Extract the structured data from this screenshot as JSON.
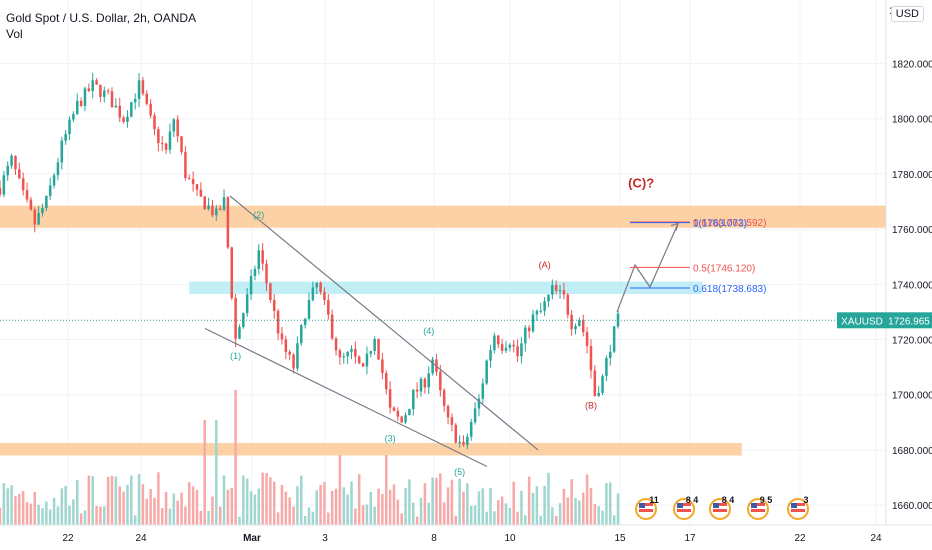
{
  "legend": {
    "title": "Gold Spot / U.S. Dollar, 2h, OANDA",
    "volume_label": "Vol"
  },
  "currency_button": "USD",
  "price_scale": {
    "top_clipped_label": "18"
  },
  "colors": {
    "up": "#26a69a",
    "down": "#ef5350",
    "vol_up": "#9fd6cf",
    "vol_down": "#f7a9a7",
    "zone_orange": "#fbc995",
    "zone_cyan": "#b2ebf2",
    "price_line": "#26a69a",
    "wave_teal": "#26a69a",
    "wave_red": "#c62828",
    "fib_blue": "#2962ff",
    "fib_red": "#ef5350",
    "trend_line": "#787b86",
    "projection": "#787b86"
  },
  "chart_data": {
    "type": "candlestick",
    "symbol": "XAUUSD",
    "timeframe": "2h",
    "ylim": [
      1651,
      1843
    ],
    "x_ticks": [
      "22",
      "24",
      "Mar",
      "3",
      "8",
      "10",
      "15",
      "17",
      "22",
      "24"
    ],
    "y_ticks": [
      "1660.000",
      "1680.000",
      "1700.000",
      "1720.000",
      "1740.000",
      "1760.000",
      "1780.000",
      "1800.000",
      "1820.000"
    ],
    "last_price": {
      "label": "XAUUSD",
      "value": "1726.965",
      "numeric": 1726.965
    },
    "price_path": [
      {
        "t": 0,
        "p": 1775
      },
      {
        "t": 3,
        "p": 1785
      },
      {
        "t": 6,
        "p": 1772
      },
      {
        "t": 9,
        "p": 1762
      },
      {
        "t": 12,
        "p": 1770
      },
      {
        "t": 16,
        "p": 1790
      },
      {
        "t": 20,
        "p": 1805
      },
      {
        "t": 24,
        "p": 1812
      },
      {
        "t": 28,
        "p": 1808
      },
      {
        "t": 32,
        "p": 1800
      },
      {
        "t": 36,
        "p": 1812
      },
      {
        "t": 40,
        "p": 1795
      },
      {
        "t": 43,
        "p": 1788
      },
      {
        "t": 45,
        "p": 1800
      },
      {
        "t": 48,
        "p": 1780
      },
      {
        "t": 51,
        "p": 1772
      },
      {
        "t": 54,
        "p": 1768
      },
      {
        "t": 56,
        "p": 1765
      },
      {
        "t": 58,
        "p": 1770
      },
      {
        "t": 61,
        "p": 1720
      },
      {
        "t": 64,
        "p": 1735
      },
      {
        "t": 67,
        "p": 1752
      },
      {
        "t": 70,
        "p": 1735
      },
      {
        "t": 73,
        "p": 1718
      },
      {
        "t": 76,
        "p": 1710
      },
      {
        "t": 79,
        "p": 1730
      },
      {
        "t": 82,
        "p": 1740
      },
      {
        "t": 85,
        "p": 1728
      },
      {
        "t": 88,
        "p": 1712
      },
      {
        "t": 91,
        "p": 1715
      },
      {
        "t": 94,
        "p": 1708
      },
      {
        "t": 97,
        "p": 1722
      },
      {
        "t": 99,
        "p": 1708
      },
      {
        "t": 101,
        "p": 1694
      },
      {
        "t": 104,
        "p": 1690
      },
      {
        "t": 107,
        "p": 1700
      },
      {
        "t": 110,
        "p": 1705
      },
      {
        "t": 112,
        "p": 1713
      },
      {
        "t": 114,
        "p": 1700
      },
      {
        "t": 116,
        "p": 1690
      },
      {
        "t": 118,
        "p": 1685
      },
      {
        "t": 120,
        "p": 1680
      },
      {
        "t": 122,
        "p": 1690
      },
      {
        "t": 124,
        "p": 1698
      },
      {
        "t": 126,
        "p": 1712
      },
      {
        "t": 128,
        "p": 1722
      },
      {
        "t": 130,
        "p": 1718
      },
      {
        "t": 132,
        "p": 1720
      },
      {
        "t": 134,
        "p": 1714
      },
      {
        "t": 136,
        "p": 1722
      },
      {
        "t": 138,
        "p": 1728
      },
      {
        "t": 140,
        "p": 1730
      },
      {
        "t": 143,
        "p": 1738
      },
      {
        "t": 146,
        "p": 1735
      },
      {
        "t": 148,
        "p": 1726
      },
      {
        "t": 150,
        "p": 1728
      },
      {
        "t": 152,
        "p": 1718
      },
      {
        "t": 154,
        "p": 1700
      },
      {
        "t": 156,
        "p": 1706
      },
      {
        "t": 158,
        "p": 1718
      },
      {
        "t": 160,
        "p": 1727
      }
    ],
    "zones": [
      {
        "from": 1760.5,
        "to": 1768.5,
        "x0": 0,
        "x1": 1,
        "color_key": "zone_orange"
      },
      {
        "from": 1736.5,
        "to": 1741,
        "x0": 0.2,
        "x1": 0.75,
        "color_key": "zone_cyan"
      },
      {
        "from": 1678,
        "to": 1682.5,
        "x0": 0,
        "x1": 0.8,
        "color_key": "zone_orange"
      }
    ],
    "fib_levels": [
      {
        "label": "0.618(1762.592)",
        "value": 1762.592,
        "color_key": "fib_red"
      },
      {
        "label": "1(1763.073)",
        "value": 1763.073,
        "color_key": "fib_blue"
      },
      {
        "label": "0.5(1746.120)",
        "value": 1746.12,
        "color_key": "fib_red"
      },
      {
        "label": "0.618(1738.683)",
        "value": 1738.683,
        "color_key": "fib_blue"
      }
    ],
    "wave_labels": [
      {
        "text": "(1)",
        "t": 61,
        "p": 1713,
        "color_key": "wave_teal"
      },
      {
        "text": "(2)",
        "t": 67,
        "p": 1764,
        "color_key": "wave_teal"
      },
      {
        "text": "(3)",
        "t": 101,
        "p": 1683,
        "color_key": "wave_teal"
      },
      {
        "text": "(4)",
        "t": 111,
        "p": 1722,
        "color_key": "wave_teal"
      },
      {
        "text": "(5)",
        "t": 119,
        "p": 1671,
        "color_key": "wave_teal"
      },
      {
        "text": "(A)",
        "t": 141,
        "p": 1746,
        "color_key": "wave_red"
      },
      {
        "text": "(B)",
        "t": 153,
        "p": 1695,
        "color_key": "wave_red"
      },
      {
        "text": "(C)?",
        "t": 166,
        "p": 1775,
        "color_key": "wave_red"
      }
    ],
    "events": [
      {
        "label": "11"
      },
      {
        "label": "8 4"
      },
      {
        "label": "8 4"
      },
      {
        "label": "9 5"
      },
      {
        "label": "3"
      }
    ]
  }
}
